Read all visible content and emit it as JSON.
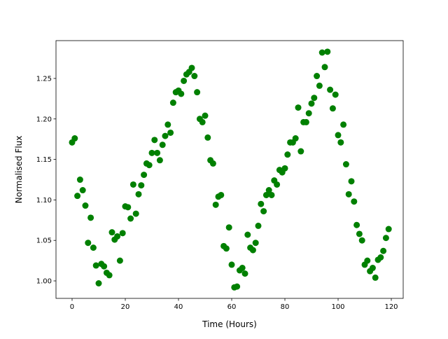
{
  "chart_data": {
    "type": "scatter",
    "title": "",
    "xlabel": "Time (Hours)",
    "ylabel": "Normalised Flux",
    "xlim": [
      -6.05,
      124.47
    ],
    "ylim": [
      0.9784,
      1.2967
    ],
    "xticks": [
      0,
      20,
      40,
      60,
      80,
      100,
      120
    ],
    "xtick_labels": [
      "0",
      "20",
      "40",
      "60",
      "80",
      "100",
      "120"
    ],
    "yticks": [
      1.0,
      1.05,
      1.1,
      1.15,
      1.2,
      1.25
    ],
    "ytick_labels": [
      "1.00",
      "1.05",
      "1.10",
      "1.15",
      "1.20",
      "1.25"
    ],
    "grid": false,
    "marker_color": "#008000",
    "x": [
      0,
      1,
      2,
      3,
      4,
      5,
      6,
      7,
      8,
      9,
      10,
      11,
      12,
      13,
      14,
      15,
      16,
      17,
      18,
      19,
      20,
      21,
      22,
      23,
      24,
      25,
      26,
      27,
      28,
      29,
      30,
      31,
      32,
      33,
      34,
      35,
      36,
      37,
      38,
      39,
      40,
      41,
      42,
      43,
      44,
      45,
      46,
      47,
      48,
      49,
      50,
      51,
      52,
      53,
      54,
      55,
      56,
      57,
      58,
      59,
      60,
      61,
      62,
      63,
      64,
      65,
      66,
      67,
      68,
      69,
      70,
      71,
      72,
      73,
      74,
      75,
      76,
      77,
      78,
      79,
      80,
      81,
      82,
      83,
      84,
      85,
      86,
      87,
      88,
      89,
      90,
      91,
      92,
      93,
      94,
      95,
      96,
      97,
      98,
      99,
      100,
      101,
      102,
      103,
      104,
      105,
      106,
      107,
      108,
      109,
      110,
      111,
      112,
      113,
      114,
      115,
      116,
      117,
      118,
      119
    ],
    "y": [
      1.171,
      1.176,
      1.105,
      1.125,
      1.112,
      1.093,
      1.047,
      1.078,
      1.041,
      1.019,
      0.997,
      1.021,
      1.018,
      1.01,
      1.007,
      1.06,
      1.051,
      1.055,
      1.025,
      1.059,
      1.092,
      1.091,
      1.077,
      1.119,
      1.083,
      1.107,
      1.118,
      1.131,
      1.145,
      1.143,
      1.158,
      1.174,
      1.158,
      1.149,
      1.168,
      1.179,
      1.193,
      1.183,
      1.22,
      1.233,
      1.235,
      1.231,
      1.247,
      1.255,
      1.258,
      1.263,
      1.253,
      1.233,
      1.2,
      1.196,
      1.204,
      1.177,
      1.149,
      1.145,
      1.094,
      1.104,
      1.106,
      1.043,
      1.04,
      1.066,
      1.02,
      0.992,
      0.993,
      1.013,
      1.016,
      1.009,
      1.057,
      1.041,
      1.038,
      1.047,
      1.068,
      1.095,
      1.086,
      1.106,
      1.112,
      1.106,
      1.124,
      1.119,
      1.137,
      1.134,
      1.139,
      1.156,
      1.171,
      1.171,
      1.176,
      1.214,
      1.16,
      1.196,
      1.196,
      1.207,
      1.219,
      1.226,
      1.253,
      1.241,
      1.282,
      1.264,
      1.283,
      1.236,
      1.213,
      1.23,
      1.18,
      1.171,
      1.193,
      1.144,
      1.107,
      1.123,
      1.098,
      1.069,
      1.058,
      1.05,
      1.02,
      1.025,
      1.012,
      1.016,
      1.004,
      1.026,
      1.029,
      1.037,
      1.053,
      1.064
    ]
  }
}
